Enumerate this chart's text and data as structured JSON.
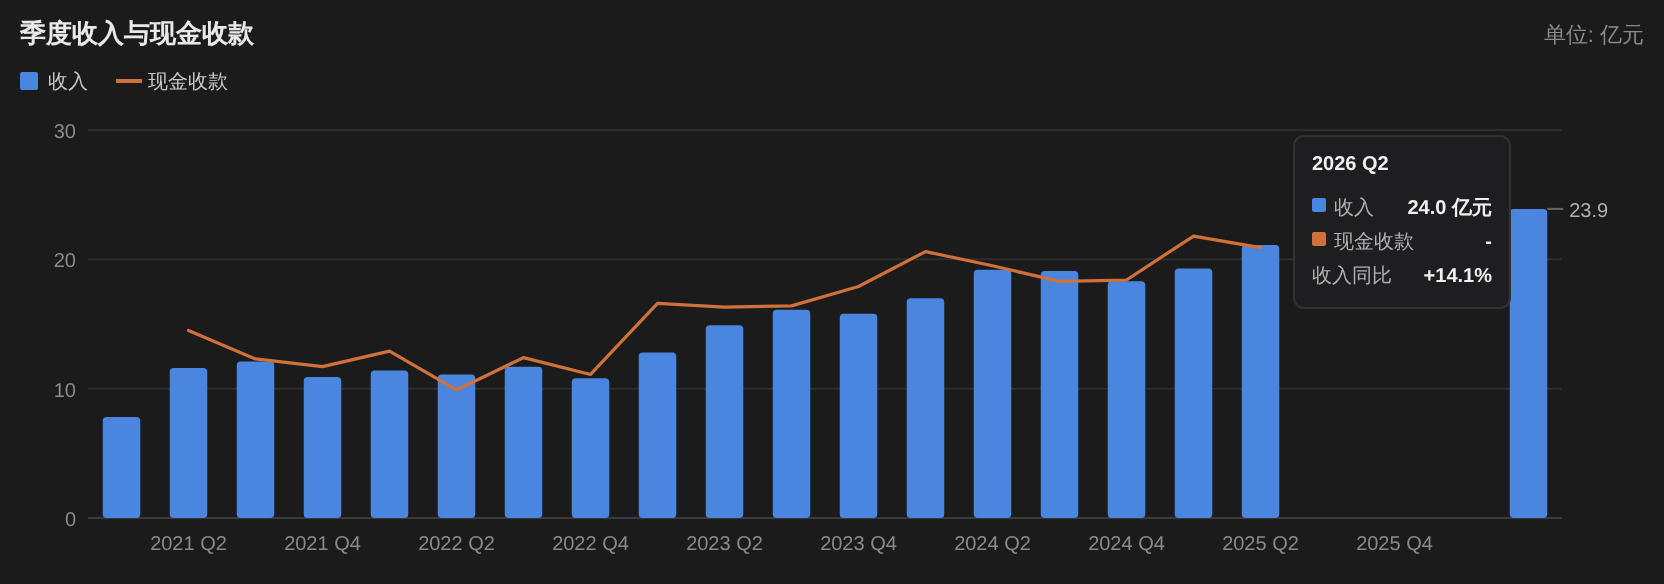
{
  "chart_data": {
    "type": "bar",
    "title": "季度收入与现金收款",
    "annotations": [
      "单位: 亿元",
      "2026 Q2",
      "收入",
      "24.0 亿元",
      "现金收款",
      "-",
      "收入同比",
      "+14.1%"
    ],
    "categories": [
      null,
      "2021 Q2",
      null,
      "2021 Q4",
      null,
      "2022 Q2",
      null,
      "2022 Q4",
      null,
      "2023 Q2",
      null,
      "2023 Q4",
      null,
      "2024 Q2",
      null,
      "2024 Q4",
      null,
      "2025 Q2",
      null,
      "2025 Q4",
      null,
      null
    ],
    "series": [
      {
        "name": "收入",
        "color": "#4a86e0",
        "values": [
          7.8,
          11.6,
          12.1,
          10.9,
          11.4,
          11.1,
          11.7,
          10.8,
          12.8,
          14.9,
          16.1,
          15.8,
          17.0,
          19.2,
          19.1,
          18.3,
          19.3,
          21.1,
          null,
          null,
          null,
          23.9
        ],
        "value_labels": [
          null,
          null,
          null,
          null,
          null,
          null,
          null,
          null,
          null,
          null,
          null,
          null,
          null,
          null,
          null,
          null,
          null,
          null,
          null,
          null,
          null,
          "23.9"
        ]
      },
      {
        "name": "现金收款",
        "type": "line",
        "color": "#d0703a",
        "values": [
          null,
          14.5,
          12.3,
          11.7,
          12.9,
          9.9,
          12.4,
          11.1,
          16.6,
          16.3,
          16.4,
          17.9,
          20.6,
          19.5,
          18.3,
          18.4,
          21.8,
          20.9,
          null,
          null,
          null,
          null
        ]
      }
    ],
    "ylim": [
      0,
      30
    ],
    "yticks": [
      0,
      10,
      20,
      30
    ],
    "grid": "y",
    "legend": "top left",
    "marker": "none",
    "line_style": "solid"
  }
}
